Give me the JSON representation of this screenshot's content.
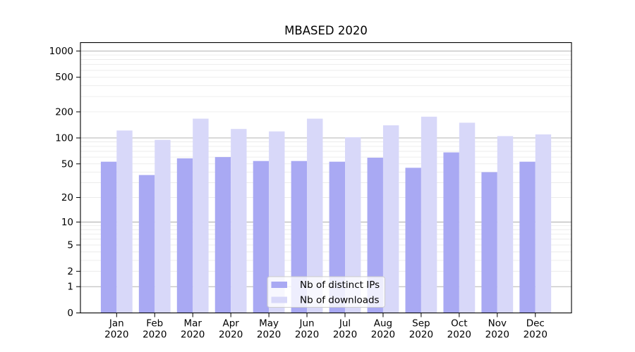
{
  "title": "MBASED 2020",
  "legend": {
    "items": [
      {
        "label": "Nb of distinct IPs",
        "color": "#a9a9f3"
      },
      {
        "label": "Nb of downloads",
        "color": "#d8d8f9"
      }
    ],
    "position": "lower-center"
  },
  "axes": {
    "y_tick_labels": [
      "0",
      "1",
      "2",
      "5",
      "10",
      "20",
      "50",
      "100",
      "200",
      "500",
      "1000"
    ],
    "x_tick_labels_line1": [
      "Jan",
      "Feb",
      "Mar",
      "Apr",
      "May",
      "Jun",
      "Jul",
      "Aug",
      "Sep",
      "Oct",
      "Nov",
      "Dec"
    ],
    "x_tick_labels_line2": [
      "2020",
      "2020",
      "2020",
      "2020",
      "2020",
      "2020",
      "2020",
      "2020",
      "2020",
      "2020",
      "2020",
      "2020"
    ]
  },
  "chart_data": {
    "type": "bar",
    "title": "MBASED 2020",
    "categories": [
      "Jan 2020",
      "Feb 2020",
      "Mar 2020",
      "Apr 2020",
      "May 2020",
      "Jun 2020",
      "Jul 2020",
      "Aug 2020",
      "Sep 2020",
      "Oct 2020",
      "Nov 2020",
      "Dec 2020"
    ],
    "series": [
      {
        "name": "Nb of distinct IPs",
        "color": "#a9a9f3",
        "values": [
          53,
          37,
          58,
          60,
          54,
          54,
          53,
          59,
          45,
          68,
          40,
          53
        ]
      },
      {
        "name": "Nb of downloads",
        "color": "#d8d8f9",
        "values": [
          122,
          95,
          167,
          127,
          119,
          167,
          102,
          140,
          176,
          150,
          105,
          110
        ]
      }
    ],
    "xlabel": "",
    "ylabel": "",
    "yscale": "log1p",
    "ylim": [
      0,
      1250
    ],
    "yticks": [
      0,
      1,
      2,
      5,
      10,
      20,
      50,
      100,
      200,
      500,
      1000
    ],
    "minor_yticks": [
      2,
      3,
      4,
      5,
      6,
      7,
      8,
      9,
      20,
      30,
      40,
      50,
      60,
      70,
      80,
      90,
      200,
      300,
      400,
      500,
      600,
      700,
      800,
      900
    ],
    "grid": true,
    "legend_position": "lower-center"
  },
  "colors": {
    "major_grid": "#a8a8a8",
    "minor_grid": "#e8e8e8",
    "spine": "#000000",
    "legend_border": "#cccccc",
    "legend_bg": "#ffffff"
  }
}
